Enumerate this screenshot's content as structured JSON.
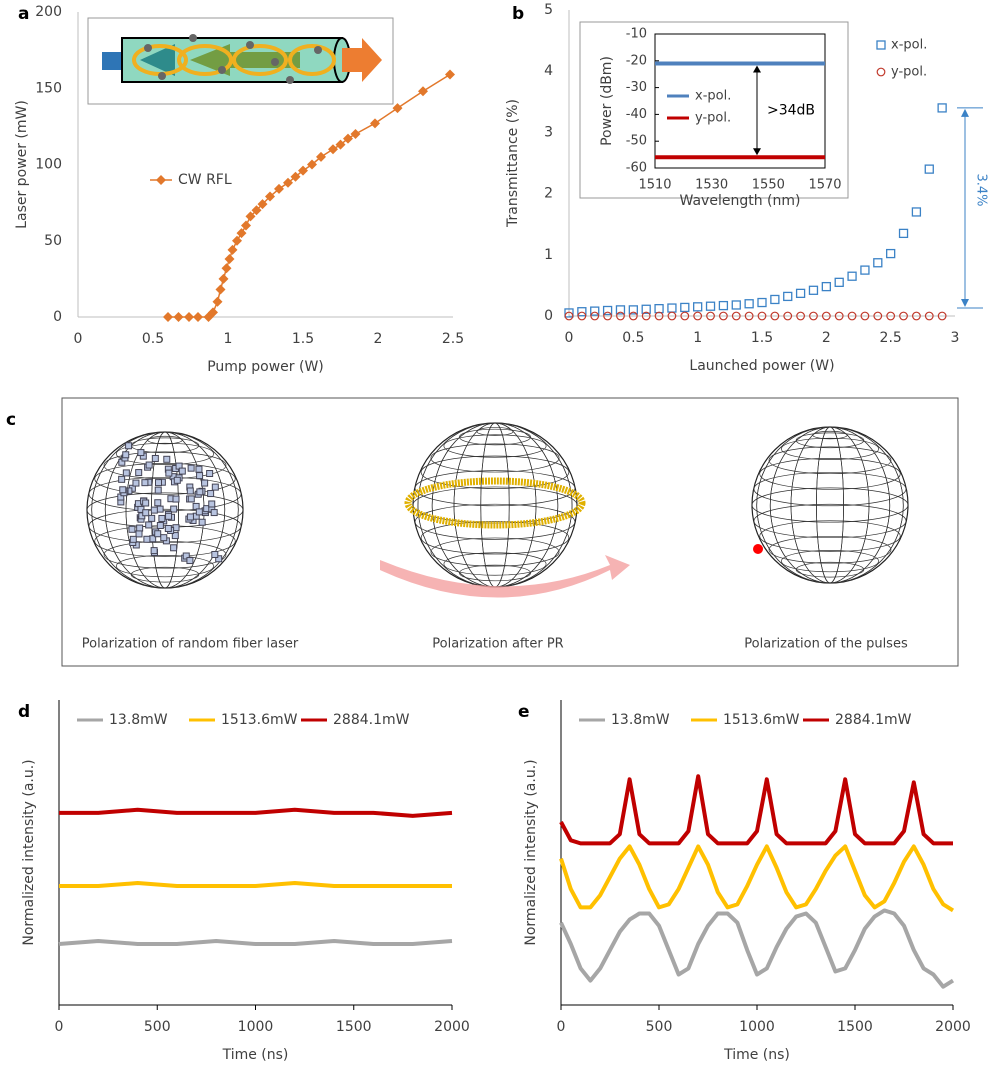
{
  "chart_data": [
    {
      "type": "line",
      "label": "a",
      "xlabel": "Pump power (W)",
      "ylabel": "Laser power (mW)",
      "x": [
        0.6,
        0.67,
        0.74,
        0.8,
        0.87,
        0.9,
        0.93,
        0.95,
        0.97,
        0.99,
        1.01,
        1.03,
        1.06,
        1.09,
        1.12,
        1.15,
        1.19,
        1.23,
        1.28,
        1.34,
        1.4,
        1.45,
        1.5,
        1.56,
        1.62,
        1.7,
        1.75,
        1.8,
        1.85,
        1.98,
        2.13,
        2.3,
        2.48
      ],
      "series": [
        {
          "name": "CW RFL",
          "color": "#e2782b",
          "marker": "diamond",
          "values": [
            0,
            0,
            0,
            0,
            0,
            3,
            10,
            18,
            25,
            32,
            38,
            44,
            50,
            55,
            60,
            66,
            70,
            74,
            79,
            84,
            88,
            92,
            96,
            100,
            105,
            110,
            113,
            117,
            120,
            127,
            137,
            148,
            159
          ]
        }
      ],
      "xlim": [
        0,
        2.5
      ],
      "xticks": [
        0,
        0.5,
        1,
        1.5,
        2,
        2.5
      ],
      "ylim": [
        0,
        200
      ],
      "yticks": [
        0,
        50,
        100,
        150,
        200
      ],
      "legend": "center-left"
    },
    {
      "type": "scatter",
      "label": "b",
      "xlabel": "Launched power (W)",
      "ylabel": "Transmittance (%)",
      "x": [
        0,
        0.1,
        0.2,
        0.3,
        0.4,
        0.5,
        0.6,
        0.7,
        0.8,
        0.9,
        1,
        1.1,
        1.2,
        1.3,
        1.4,
        1.5,
        1.6,
        1.7,
        1.8,
        1.9,
        2,
        2.1,
        2.2,
        2.3,
        2.4,
        2.5,
        2.6,
        2.7,
        2.8,
        2.9
      ],
      "series": [
        {
          "name": "x-pol.",
          "color": "#3b82c6",
          "marker": "square",
          "values": [
            0.05,
            0.07,
            0.08,
            0.09,
            0.1,
            0.1,
            0.11,
            0.12,
            0.13,
            0.14,
            0.15,
            0.16,
            0.17,
            0.18,
            0.2,
            0.22,
            0.27,
            0.32,
            0.37,
            0.42,
            0.48,
            0.55,
            0.65,
            0.75,
            0.87,
            1.02,
            1.35,
            1.7,
            2.4,
            3.4
          ]
        },
        {
          "name": "y-pol.",
          "color": "#c0392b",
          "marker": "circle",
          "values": [
            0,
            0,
            0,
            0,
            0,
            0,
            0,
            0,
            0,
            0,
            0,
            0,
            0,
            0,
            0,
            0,
            0,
            0,
            0,
            0,
            0,
            0,
            0,
            0,
            0,
            0,
            0,
            0,
            0,
            0
          ]
        }
      ],
      "xlim": [
        0,
        3
      ],
      "xticks": [
        0,
        0.5,
        1,
        1.5,
        2,
        2.5,
        3
      ],
      "ylim": [
        0,
        5
      ],
      "yticks": [
        0,
        1,
        2,
        3,
        4,
        5
      ],
      "legend": "right",
      "annotation": "3.4%"
    },
    {
      "type": "line",
      "xlabel": "Wavelength (nm)",
      "ylabel": "Power (dBm)",
      "x": [
        1510,
        1570
      ],
      "series": [
        {
          "name": "x-pol.",
          "color": "#4f81bd",
          "values": [
            -21,
            -21
          ]
        },
        {
          "name": "y-pol.",
          "color": "#c00000",
          "values": [
            -56,
            -56
          ]
        }
      ],
      "xlim": [
        1510,
        1570
      ],
      "xticks": [
        1510,
        1530,
        1550,
        1570
      ],
      "ylim": [
        -60,
        -10
      ],
      "yticks": [
        -60,
        -50,
        -40,
        -30,
        -20,
        -10
      ],
      "legend": "center-left",
      "annotation": ">34dB"
    },
    {
      "type": "line",
      "label": "d",
      "xlabel": "Time (ns)",
      "ylabel": "Normalized intensity (a.u.)",
      "x": [
        0,
        200,
        400,
        600,
        800,
        1000,
        1200,
        1400,
        1600,
        1800,
        2000
      ],
      "series": [
        {
          "name": "13.8mW",
          "color": "#a6a6a6",
          "values": [
            0.2,
            0.21,
            0.2,
            0.2,
            0.21,
            0.2,
            0.2,
            0.21,
            0.2,
            0.2,
            0.21
          ]
        },
        {
          "name": "1513.6mW",
          "color": "#ffc000",
          "values": [
            0.39,
            0.39,
            0.4,
            0.39,
            0.39,
            0.39,
            0.4,
            0.39,
            0.39,
            0.39,
            0.39
          ]
        },
        {
          "name": "2884.1mW",
          "color": "#c00000",
          "values": [
            0.63,
            0.63,
            0.64,
            0.63,
            0.63,
            0.63,
            0.64,
            0.63,
            0.63,
            0.62,
            0.63
          ]
        }
      ],
      "xlim": [
        0,
        2000
      ],
      "xticks": [
        0,
        500,
        1000,
        1500,
        2000
      ],
      "ylim": [
        0,
        1
      ],
      "legend": "top"
    },
    {
      "type": "line",
      "label": "e",
      "xlabel": "Time (ns)",
      "ylabel": "Normalized intensity (a.u.)",
      "x": [
        0,
        50,
        100,
        150,
        200,
        250,
        300,
        350,
        400,
        450,
        500,
        550,
        600,
        650,
        700,
        750,
        800,
        850,
        900,
        950,
        1000,
        1050,
        1100,
        1150,
        1200,
        1250,
        1300,
        1350,
        1400,
        1450,
        1500,
        1550,
        1600,
        1650,
        1700,
        1750,
        1800,
        1850,
        1900,
        1950,
        2000
      ],
      "series": [
        {
          "name": "13.8mW",
          "color": "#a6a6a6",
          "values": [
            0.27,
            0.2,
            0.12,
            0.08,
            0.12,
            0.18,
            0.24,
            0.28,
            0.3,
            0.3,
            0.26,
            0.18,
            0.1,
            0.12,
            0.2,
            0.26,
            0.3,
            0.3,
            0.27,
            0.18,
            0.1,
            0.12,
            0.19,
            0.25,
            0.29,
            0.3,
            0.27,
            0.19,
            0.11,
            0.12,
            0.18,
            0.25,
            0.29,
            0.31,
            0.3,
            0.26,
            0.18,
            0.12,
            0.1,
            0.06,
            0.08
          ]
        },
        {
          "name": "1513.6mW",
          "color": "#ffc000",
          "values": [
            0.48,
            0.38,
            0.32,
            0.32,
            0.36,
            0.42,
            0.48,
            0.52,
            0.46,
            0.38,
            0.32,
            0.33,
            0.38,
            0.45,
            0.52,
            0.46,
            0.37,
            0.32,
            0.33,
            0.39,
            0.46,
            0.52,
            0.45,
            0.37,
            0.32,
            0.33,
            0.38,
            0.44,
            0.49,
            0.52,
            0.44,
            0.36,
            0.32,
            0.34,
            0.4,
            0.47,
            0.52,
            0.46,
            0.38,
            0.33,
            0.31
          ]
        },
        {
          "name": "2884.1mW",
          "color": "#c00000",
          "values": [
            0.6,
            0.54,
            0.53,
            0.53,
            0.53,
            0.53,
            0.56,
            0.74,
            0.56,
            0.53,
            0.53,
            0.53,
            0.53,
            0.57,
            0.75,
            0.56,
            0.53,
            0.53,
            0.53,
            0.53,
            0.57,
            0.74,
            0.56,
            0.53,
            0.53,
            0.53,
            0.53,
            0.53,
            0.57,
            0.74,
            0.56,
            0.53,
            0.53,
            0.53,
            0.53,
            0.57,
            0.73,
            0.56,
            0.53,
            0.53,
            0.53
          ]
        }
      ],
      "xlim": [
        0,
        2000
      ],
      "xticks": [
        0,
        500,
        1000,
        1500,
        2000
      ],
      "ylim": [
        0,
        1
      ],
      "legend": "top"
    }
  ],
  "panel_c": {
    "label": "c",
    "captions": [
      "Polarization of random fiber laser",
      "Polarization after  PR",
      "Polarization of the pulses"
    ]
  }
}
